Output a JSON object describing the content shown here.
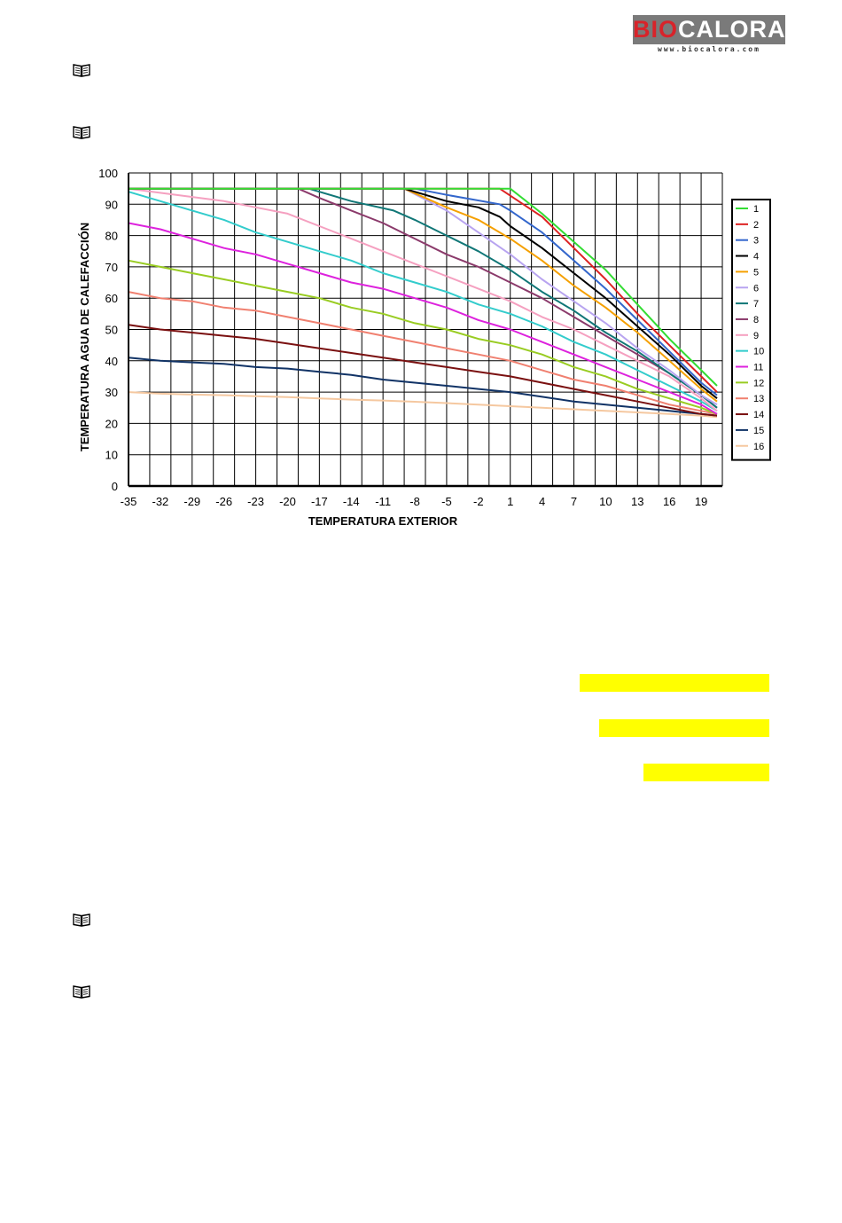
{
  "logo": {
    "brand_prefix": "BIO",
    "brand_suffix": "CALORA",
    "url": "www.biocalora.com"
  },
  "icons": {
    "book": "book-icon"
  },
  "chart_data": {
    "type": "line",
    "title": "",
    "xlabel": "TEMPERATURA EXTERIOR",
    "ylabel": "TEMPERATURA AGUA DE CALEFACCIÓN",
    "xlim": [
      -35,
      21
    ],
    "ylim": [
      0,
      100
    ],
    "xticks": [
      -35,
      -32,
      -29,
      -26,
      -23,
      -20,
      -17,
      -14,
      -11,
      -8,
      -5,
      -2,
      1,
      4,
      7,
      10,
      13,
      16,
      19
    ],
    "yticks": [
      0,
      10,
      20,
      30,
      40,
      50,
      60,
      70,
      80,
      90,
      100
    ],
    "grid": true,
    "legend": "right",
    "series": [
      {
        "name": "1",
        "color": "#33dd33",
        "x": [
          -35,
          1,
          4,
          7,
          10,
          13,
          16,
          19,
          20.5
        ],
        "y": [
          95,
          95,
          87,
          78,
          69,
          58,
          47,
          37,
          32
        ]
      },
      {
        "name": "2",
        "color": "#dd2222",
        "x": [
          -35,
          0,
          4,
          7,
          10,
          13,
          16,
          19,
          20.5
        ],
        "y": [
          95,
          95,
          86,
          76,
          66,
          55,
          45,
          35,
          30
        ]
      },
      {
        "name": "3",
        "color": "#3366cc",
        "x": [
          -35,
          -8,
          -5,
          0,
          1,
          4,
          7,
          10,
          13,
          16,
          19,
          20.5
        ],
        "y": [
          95,
          95,
          93,
          90,
          88,
          81,
          72,
          63,
          53,
          43,
          33,
          29
        ]
      },
      {
        "name": "4",
        "color": "#000000",
        "x": [
          -35,
          -9,
          -5,
          -2,
          0,
          1,
          4,
          7,
          10,
          13,
          16,
          19,
          20.5
        ],
        "y": [
          95,
          95,
          91,
          89,
          86,
          83,
          76,
          68,
          60,
          51,
          42,
          32,
          28
        ]
      },
      {
        "name": "5",
        "color": "#f5a000",
        "x": [
          -35,
          -9,
          -5,
          -2,
          1,
          4,
          7,
          10,
          13,
          16,
          19,
          20.5
        ],
        "y": [
          95,
          95,
          89,
          85,
          79,
          72,
          64,
          57,
          49,
          40,
          31,
          27
        ]
      },
      {
        "name": "6",
        "color": "#b8a4f0",
        "x": [
          -35,
          -9,
          -5,
          -2,
          1,
          4,
          7,
          10,
          13,
          16,
          19,
          20.5
        ],
        "y": [
          95,
          95,
          88,
          81,
          74,
          66,
          59,
          52,
          44,
          37,
          29,
          26
        ]
      },
      {
        "name": "7",
        "color": "#117777",
        "x": [
          -35,
          -18,
          -14,
          -10,
          -8,
          -5,
          -2,
          1,
          4,
          7,
          10,
          13,
          16,
          19,
          20.5
        ],
        "y": [
          95,
          95,
          91,
          88,
          85,
          80,
          75,
          69,
          62,
          56,
          49,
          43,
          36,
          29,
          25
        ]
      },
      {
        "name": "8",
        "color": "#8b3a6b",
        "x": [
          -35,
          -19,
          -17,
          -14,
          -11,
          -8,
          -5,
          -2,
          1,
          4,
          7,
          10,
          13,
          16,
          19,
          20.5
        ],
        "y": [
          95,
          95,
          92,
          88,
          84,
          79,
          74,
          70,
          65,
          60,
          54,
          48,
          42,
          36,
          29,
          25
        ]
      },
      {
        "name": "9",
        "color": "#f5a0c0",
        "x": [
          -35,
          -26,
          -23,
          -20,
          -17,
          -14,
          -11,
          -8,
          -5,
          -2,
          1,
          4,
          7,
          10,
          13,
          16,
          19,
          20.5
        ],
        "y": [
          95,
          91,
          89,
          87,
          83,
          79,
          75,
          71,
          67,
          63,
          59,
          54,
          50,
          45,
          40,
          35,
          28,
          24
        ]
      },
      {
        "name": "10",
        "color": "#33cccc",
        "x": [
          -35,
          -32,
          -29,
          -26,
          -23,
          -20,
          -17,
          -14,
          -11,
          -8,
          -5,
          -2,
          1,
          4,
          7,
          10,
          13,
          16,
          19,
          20.5
        ],
        "y": [
          94,
          91,
          88,
          85,
          81,
          78,
          75,
          72,
          68,
          65,
          62,
          58,
          55,
          51,
          46,
          42,
          37,
          32,
          27,
          24
        ]
      },
      {
        "name": "11",
        "color": "#dd22dd",
        "x": [
          -35,
          -32,
          -29,
          -26,
          -23,
          -20,
          -17,
          -14,
          -11,
          -8,
          -5,
          -2,
          1,
          4,
          7,
          10,
          13,
          16,
          19,
          20.5
        ],
        "y": [
          84,
          82,
          79,
          76,
          74,
          71,
          68,
          65,
          63,
          60,
          57,
          53,
          50,
          46,
          42,
          38,
          34,
          30,
          26,
          23
        ]
      },
      {
        "name": "12",
        "color": "#99cc22",
        "x": [
          -35,
          -32,
          -29,
          -26,
          -23,
          -20,
          -17,
          -14,
          -11,
          -8,
          -5,
          -2,
          1,
          4,
          7,
          10,
          13,
          16,
          19,
          20.5
        ],
        "y": [
          72,
          70,
          68,
          66,
          64,
          62,
          60,
          57,
          55,
          52,
          50,
          47,
          45,
          42,
          38,
          35,
          31,
          28,
          25,
          23
        ]
      },
      {
        "name": "13",
        "color": "#f08070",
        "x": [
          -35,
          -32,
          -29,
          -26,
          -23,
          -20,
          -17,
          -14,
          -11,
          -8,
          -5,
          -2,
          1,
          4,
          7,
          10,
          13,
          16,
          19,
          20.5
        ],
        "y": [
          62,
          60,
          59,
          57,
          56,
          54,
          52,
          50,
          48,
          46,
          44,
          42,
          40,
          37,
          34,
          32,
          29,
          26,
          24,
          23
        ]
      },
      {
        "name": "14",
        "color": "#7a1010",
        "x": [
          -35,
          -32,
          -29,
          -26,
          -23,
          -20,
          -17,
          -14,
          -11,
          -8,
          -5,
          -2,
          1,
          4,
          7,
          10,
          13,
          16,
          19,
          20.5
        ],
        "y": [
          51.5,
          50,
          49,
          48,
          47,
          45.5,
          44,
          42.5,
          41,
          39.5,
          38,
          36.5,
          35,
          33,
          31,
          29,
          27,
          25,
          23,
          22.5
        ]
      },
      {
        "name": "15",
        "color": "#113366",
        "x": [
          -35,
          -32,
          -29,
          -26,
          -23,
          -20,
          -17,
          -14,
          -11,
          -8,
          -5,
          -2,
          1,
          4,
          7,
          10,
          13,
          16,
          19,
          20.5
        ],
        "y": [
          41,
          40,
          39.5,
          39,
          38,
          37.5,
          36.5,
          35.5,
          34,
          33,
          32,
          31,
          30,
          28.5,
          27,
          26,
          25,
          24,
          23,
          22.5
        ]
      },
      {
        "name": "16",
        "color": "#f5c8a0",
        "x": [
          -35,
          -32,
          -29,
          -26,
          -23,
          -20,
          -17,
          -14,
          -11,
          -8,
          -5,
          -2,
          1,
          4,
          7,
          10,
          13,
          16,
          19,
          20.5
        ],
        "y": [
          30,
          29.5,
          29.2,
          29,
          28.7,
          28.4,
          28,
          27.6,
          27.3,
          26.9,
          26.5,
          26,
          25.5,
          25,
          24.5,
          24,
          23.5,
          23,
          22.5,
          22
        ]
      }
    ]
  }
}
